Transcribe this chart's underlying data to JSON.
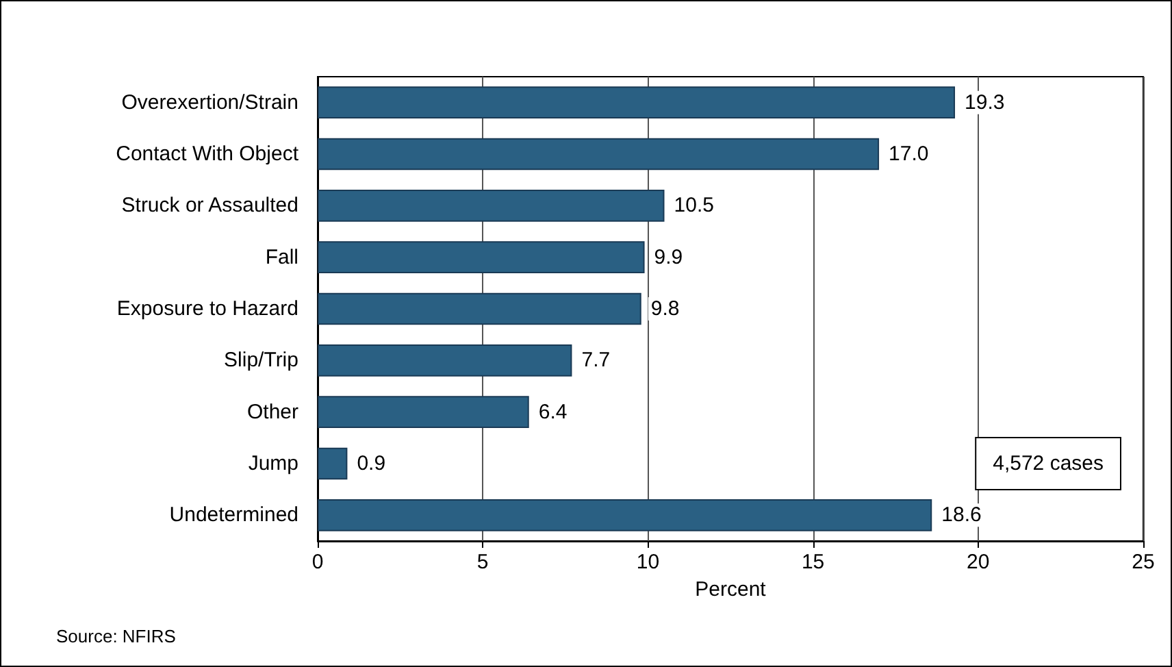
{
  "chart_data": {
    "type": "bar",
    "orientation": "horizontal",
    "xlabel": "Percent",
    "categories": [
      "Overexertion/Strain",
      "Contact With Object",
      "Struck or Assaulted",
      "Fall",
      "Exposure to Hazard",
      "Slip/Trip",
      "Other",
      "Jump",
      "Undetermined"
    ],
    "values": [
      19.3,
      17.0,
      10.5,
      9.9,
      9.8,
      7.7,
      6.4,
      0.9,
      18.6
    ],
    "value_labels": [
      "19.3",
      "17.0",
      "10.5",
      "9.9",
      "9.8",
      "7.7",
      "6.4",
      "0.9",
      "18.6"
    ],
    "color": "#2a6083",
    "xlim": [
      0,
      25
    ],
    "xticks": [
      0,
      5,
      10,
      15,
      20,
      25
    ],
    "grid": "x",
    "annotations": [
      "4,572 cases",
      "Source: NFIRS"
    ]
  }
}
